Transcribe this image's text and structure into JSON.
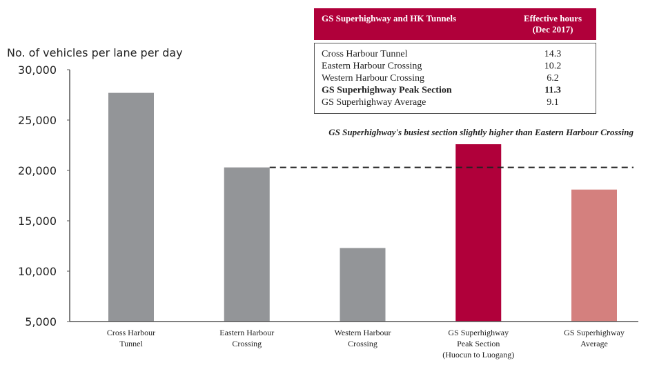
{
  "chart_data": {
    "type": "bar",
    "y_label": "No. of vehicles per lane per day",
    "annotation": "GS Superhighway's busiest section slightly higher than Eastern Harbour Crossing",
    "reference_line_category": 1,
    "categories": [
      "Cross Harbour\nTunnel",
      "Eastern Harbour\nCrossing",
      "Western Harbour\nCrossing",
      "GS Superhighway\nPeak Section\n(Huocun to Luogang)",
      "GS Superhighway\nAverage"
    ],
    "values": [
      27700,
      20300,
      12300,
      22600,
      18100
    ],
    "colors": [
      "#939598",
      "#939598",
      "#939598",
      "#b0003a",
      "#d4807e"
    ],
    "ylim": [
      5000,
      30000
    ],
    "yticks": [
      {
        "value": 5000,
        "label": "5,000"
      },
      {
        "value": 10000,
        "label": "10,000"
      },
      {
        "value": 15000,
        "label": "15,000"
      },
      {
        "value": 20000,
        "label": "20,000"
      },
      {
        "value": 25000,
        "label": "25,000"
      },
      {
        "value": 30000,
        "label": "30,000"
      }
    ],
    "grid": false
  },
  "table": {
    "columns": [
      "GS Superhighway and HK Tunnels",
      "Effective hours\n(Dec 2017)"
    ],
    "rows": [
      [
        "Cross Harbour Tunnel",
        14.3
      ],
      [
        "Eastern Harbour Crossing",
        10.2
      ],
      [
        "Western Harbour Crossing",
        6.2
      ],
      [
        "GS Superhighway Peak Section",
        11.3
      ],
      [
        "GS Superhighway Average",
        9.1
      ]
    ],
    "highlight_row": 3
  }
}
